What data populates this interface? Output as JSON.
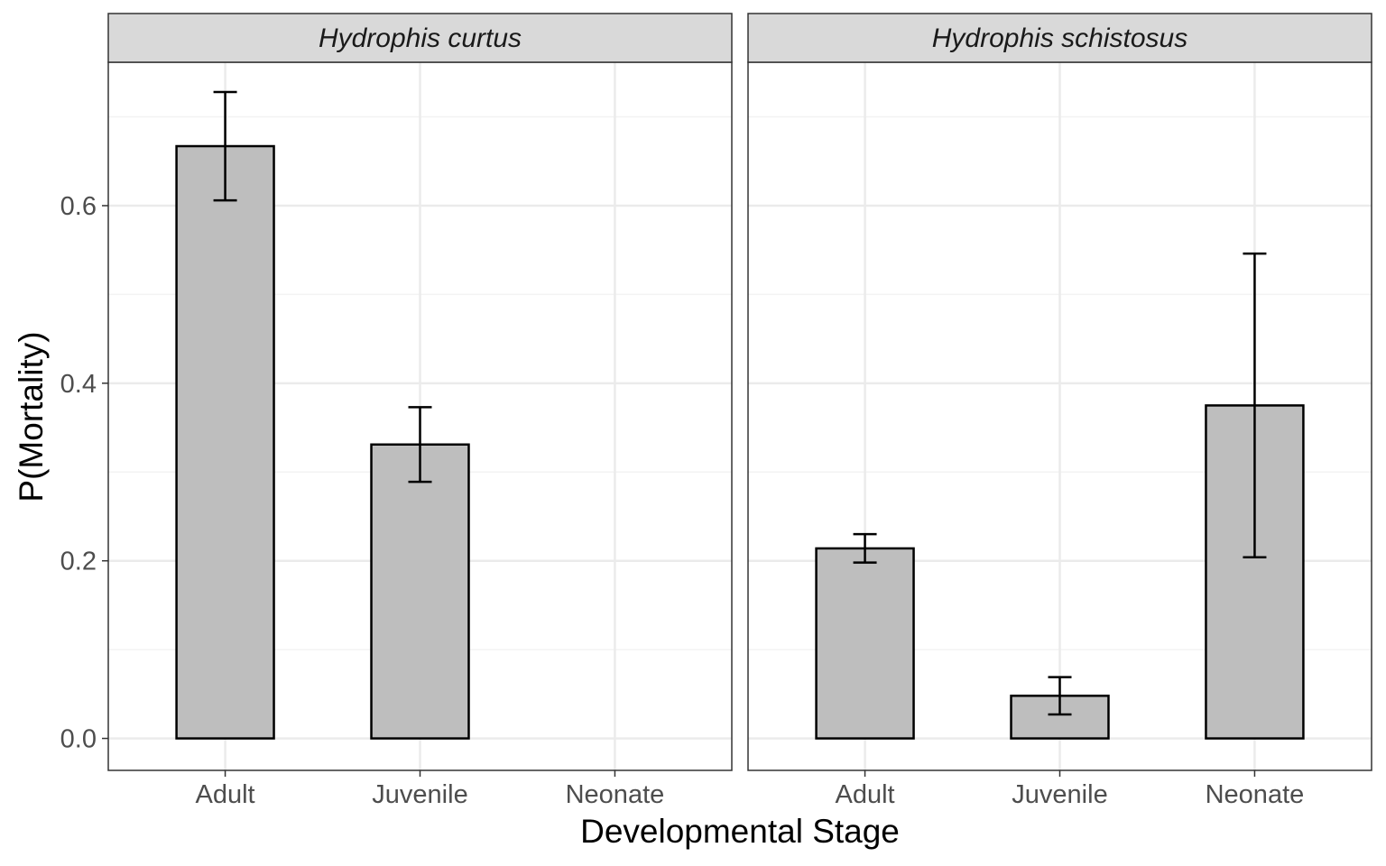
{
  "chart_data": {
    "type": "bar",
    "xlabel": "Developmental Stage",
    "ylabel": "P(Mortality)",
    "ylim": [
      -0.036,
      0.7615
    ],
    "yticks": [
      0.0,
      0.2,
      0.4,
      0.6
    ],
    "ytick_labels": [
      "0.0",
      "0.2",
      "0.4",
      "0.6"
    ],
    "grid": true,
    "bar_fill": "#bebebe",
    "bar_stroke": "#000000",
    "strip_fill": "#d9d9d9",
    "grid_color": "#ebebeb",
    "categories": [
      "Adult",
      "Juvenile",
      "Neonate"
    ],
    "panels": [
      {
        "title": "Hydrophis curtus",
        "values": [
          0.667,
          0.331,
          0.0
        ],
        "error_low": [
          0.606,
          0.289,
          null
        ],
        "error_high": [
          0.728,
          0.373,
          null
        ]
      },
      {
        "title": "Hydrophis schistosus",
        "values": [
          0.214,
          0.048,
          0.375
        ],
        "error_low": [
          0.198,
          0.027,
          0.204
        ],
        "error_high": [
          0.23,
          0.069,
          0.546
        ]
      }
    ]
  }
}
